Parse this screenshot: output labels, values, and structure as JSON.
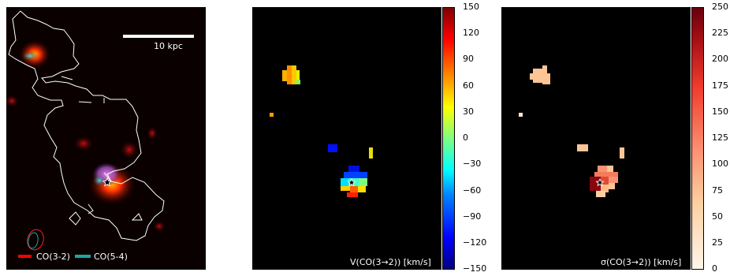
{
  "panel1": {
    "scale_label": "10 kpc",
    "legend": [
      {
        "label": "CO(3-2)",
        "color": "#ff0000"
      },
      {
        "label": "CO(5-4)",
        "color": "#1aa6a6"
      }
    ]
  },
  "panel2": {
    "label": "V(CO(3→2)) [km/s]",
    "colorbar_ticks": [
      "150",
      "120",
      "90",
      "60",
      "30",
      "0",
      "−30",
      "−60",
      "−90",
      "−120",
      "−150"
    ]
  },
  "panel3": {
    "label": "σ(CO(3→2)) [km/s]",
    "colorbar_ticks": [
      "250",
      "225",
      "200",
      "175",
      "150",
      "125",
      "100",
      "75",
      "50",
      "25",
      "0"
    ]
  },
  "colors": {
    "background": "#000000",
    "contour": "#ffffff",
    "velocity_cmap": "jet",
    "dispersion_cmap": "orange-red"
  }
}
